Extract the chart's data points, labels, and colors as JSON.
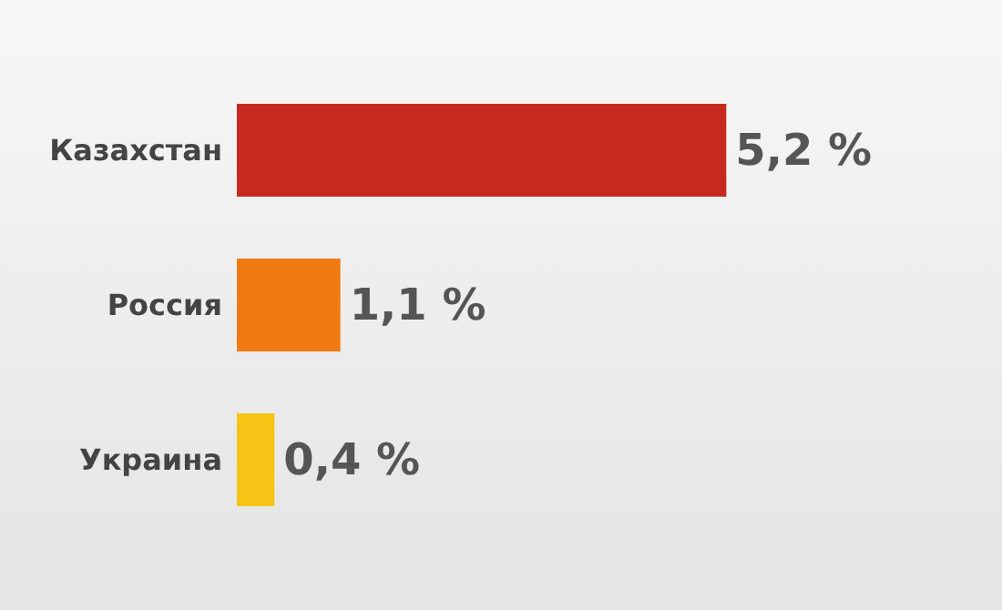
{
  "chart_data": {
    "type": "bar",
    "orientation": "horizontal",
    "categories": [
      "Казахстан",
      "Россия",
      "Украина"
    ],
    "values": [
      5.2,
      1.1,
      0.4
    ],
    "colors": [
      "#c62a1e",
      "#f07a12",
      "#f6c414"
    ],
    "value_labels": [
      "5,2 %",
      "1,1 %",
      "0,4 %"
    ]
  }
}
